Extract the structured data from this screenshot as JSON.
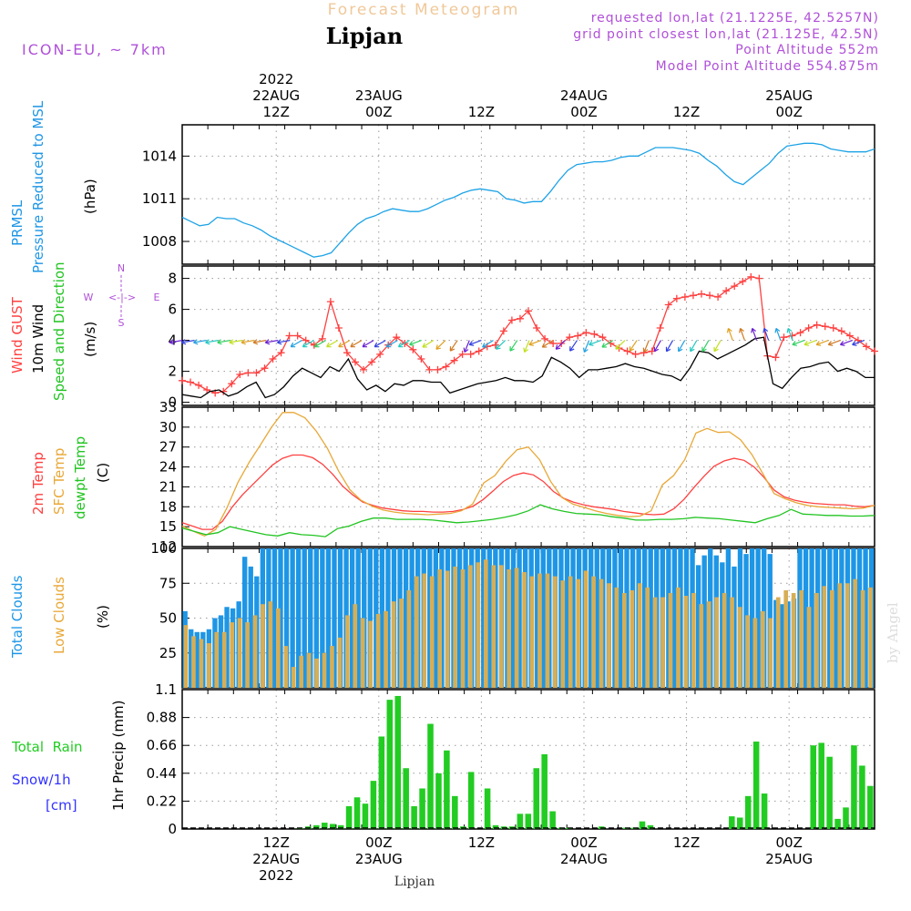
{
  "header": {
    "title": "Forecast Meteogram",
    "location": "Lipjan",
    "model": "ICON-EU, ~ 7km",
    "requested": "requested lon,lat (21.1225E, 42.5257N)",
    "gridpoint": "grid point closest lon,lat (21.125E, 42.5N)",
    "point_alt": "Point Altitude 552m",
    "model_alt": "Model Point Altitude 554.875m"
  },
  "time_axis": {
    "top_labels": [
      {
        "l1": "2022",
        "l2": "22AUG",
        "l3": "12Z",
        "h": 13
      },
      {
        "l1": "",
        "l2": "23AUG",
        "l3": "00Z",
        "h": 25
      },
      {
        "l1": "",
        "l2": "",
        "l3": "12Z",
        "h": 37
      },
      {
        "l1": "",
        "l2": "24AUG",
        "l3": "00Z",
        "h": 49
      },
      {
        "l1": "",
        "l2": "",
        "l3": "12Z",
        "h": 61
      },
      {
        "l1": "",
        "l2": "25AUG",
        "l3": "00Z",
        "h": 73
      }
    ],
    "bottom_labels": [
      {
        "l1": "12Z",
        "l2": "22AUG",
        "l3": "2022",
        "h": 13
      },
      {
        "l1": "00Z",
        "l2": "23AUG",
        "l3": "",
        "h": 25
      },
      {
        "l1": "12Z",
        "l2": "",
        "l3": "",
        "h": 37
      },
      {
        "l1": "00Z",
        "l2": "24AUG",
        "l3": "",
        "h": 49
      },
      {
        "l1": "12Z",
        "l2": "",
        "l3": "",
        "h": 61
      },
      {
        "l1": "00Z",
        "l2": "25AUG",
        "l3": "",
        "h": 73
      }
    ],
    "footer": "Lipjan",
    "watermark": "by Angel"
  },
  "colors": {
    "pressure": "#1ea3e6",
    "gust": "#ff4040",
    "wind10": "#000000",
    "t2m": "#ff4040",
    "sfc": "#e8a838",
    "dew": "#22c422",
    "total_clouds": "#1e96e6",
    "low_clouds": "#d7ae55",
    "rain": "#22cc22",
    "snow": "#3333ff",
    "purple": "#b050d8"
  },
  "chart_data": [
    {
      "type": "line",
      "title": "",
      "ylabel_lines": [
        "PRMSL",
        "Pressure Reduced to MSL"
      ],
      "unit": "(hPa)",
      "yticks": [
        1008,
        1011,
        1014
      ],
      "ylim": [
        1006.4,
        1016.2
      ],
      "series": [
        {
          "name": "PRMSL",
          "values": [
            1009.7,
            1009.4,
            1009.1,
            1009.2,
            1009.7,
            1009.6,
            1009.6,
            1009.3,
            1009.1,
            1008.8,
            1008.4,
            1008.1,
            1007.8,
            1007.5,
            1007.2,
            1006.9,
            1007.0,
            1007.2,
            1007.9,
            1008.6,
            1009.2,
            1009.6,
            1009.8,
            1010.1,
            1010.3,
            1010.2,
            1010.1,
            1010.1,
            1010.3,
            1010.6,
            1010.9,
            1011.1,
            1011.4,
            1011.6,
            1011.7,
            1011.6,
            1011.5,
            1011.0,
            1010.9,
            1010.7,
            1010.8,
            1010.8,
            1011.5,
            1012.3,
            1013.0,
            1013.4,
            1013.5,
            1013.6,
            1013.6,
            1013.7,
            1013.9,
            1014.0,
            1014.0,
            1014.3,
            1014.6,
            1014.6,
            1014.6,
            1014.5,
            1014.4,
            1014.2,
            1013.7,
            1013.3,
            1012.7,
            1012.2,
            1012.0,
            1012.5,
            1013.0,
            1013.5,
            1014.2,
            1014.7,
            1014.8,
            1014.9,
            1014.9,
            1014.8,
            1014.5,
            1014.4,
            1014.3,
            1014.3,
            1014.3,
            1014.5
          ]
        }
      ]
    },
    {
      "type": "line",
      "ylabel_lines": [
        "Wind GUST",
        "10m Wind",
        "Speed and Direction"
      ],
      "unit": "(m/s)",
      "compass": {
        "n": "N",
        "s": "S",
        "w": "W",
        "e": "E",
        "arrow": "<-|->"
      },
      "yticks": [
        0,
        2,
        4,
        6,
        8
      ],
      "ylim": [
        -0.2,
        8.8
      ],
      "series": [
        {
          "name": "Wind GUST",
          "values": [
            1.4,
            1.3,
            1.1,
            0.8,
            0.6,
            0.7,
            1.2,
            1.8,
            1.9,
            1.9,
            2.2,
            2.8,
            3.2,
            4.3,
            4.3,
            4.0,
            3.7,
            4.1,
            6.5,
            4.8,
            3.2,
            2.6,
            2.1,
            2.6,
            3.1,
            3.7,
            4.2,
            3.8,
            3.4,
            2.8,
            2.1,
            2.1,
            2.3,
            2.7,
            3.1,
            3.1,
            3.3,
            3.6,
            3.7,
            4.6,
            5.3,
            5.4,
            5.9,
            4.8,
            4.1,
            3.8,
            3.8,
            4.2,
            4.3,
            4.5,
            4.4,
            4.2,
            3.8,
            3.5,
            3.3,
            3.1,
            3.2,
            3.3,
            4.8,
            6.3,
            6.7,
            6.8,
            6.9,
            7.0,
            6.9,
            6.8,
            7.2,
            7.5,
            7.8,
            8.1,
            8.0,
            3.0,
            2.9,
            4.2,
            4.3,
            4.5,
            4.8,
            5.0,
            4.9,
            4.8,
            4.6,
            4.3,
            4.0,
            3.6,
            3.3
          ]
        },
        {
          "name": "10m Wind",
          "values": [
            0.5,
            0.4,
            0.3,
            0.7,
            0.8,
            0.4,
            0.6,
            1.0,
            1.3,
            0.3,
            0.5,
            1.0,
            1.7,
            2.2,
            1.9,
            1.6,
            2.3,
            2.0,
            2.8,
            1.5,
            0.8,
            1.1,
            0.7,
            1.2,
            1.1,
            1.4,
            1.4,
            1.3,
            1.3,
            0.6,
            0.8,
            1.0,
            1.2,
            1.3,
            1.4,
            1.6,
            1.4,
            1.4,
            1.3,
            1.7,
            2.9,
            2.6,
            2.2,
            1.6,
            2.1,
            2.1,
            2.2,
            2.3,
            2.5,
            2.3,
            2.2,
            2.0,
            1.8,
            1.7,
            1.4,
            2.2,
            3.3,
            3.2,
            2.8,
            3.1,
            3.4,
            3.7,
            4.1,
            4.2,
            1.2,
            0.9,
            1.6,
            2.2,
            2.3,
            2.5,
            2.6,
            2.0,
            2.2,
            2.0,
            1.6,
            1.6
          ]
        }
      ]
    },
    {
      "type": "line",
      "ylabel_lines": [
        "2m Temp",
        "SFC Temp",
        "dewpt Temp"
      ],
      "unit": "(C)",
      "yticks": [
        12,
        15,
        18,
        21,
        24,
        27,
        30,
        33
      ],
      "ylim": [
        12,
        33
      ],
      "series": [
        {
          "name": "2m Temp",
          "values": [
            15.6,
            15.1,
            14.6,
            14.6,
            15.8,
            18.0,
            19.8,
            21.3,
            22.8,
            24.3,
            25.3,
            25.8,
            25.8,
            25.4,
            24.4,
            22.9,
            21.1,
            19.8,
            18.7,
            18.2,
            17.8,
            17.6,
            17.4,
            17.3,
            17.3,
            17.2,
            17.2,
            17.3,
            17.6,
            18.1,
            19.1,
            20.4,
            21.8,
            22.7,
            23.1,
            22.8,
            21.8,
            20.3,
            19.3,
            18.7,
            18.3,
            18.0,
            17.8,
            17.6,
            17.3,
            17.1,
            16.9,
            16.8,
            16.9,
            17.7,
            19.1,
            20.9,
            22.6,
            24.1,
            24.9,
            25.3,
            25.0,
            24.0,
            22.4,
            20.5,
            19.5,
            19.0,
            18.7,
            18.5,
            18.4,
            18.3,
            18.3,
            18.1,
            18.0,
            18.2
          ]
        },
        {
          "name": "SFC Temp",
          "values": [
            15.1,
            14.3,
            13.6,
            14.6,
            17.8,
            21.7,
            24.7,
            27.3,
            30.0,
            32.2,
            32.2,
            31.4,
            29.4,
            26.8,
            23.4,
            20.6,
            19.0,
            18.1,
            17.5,
            17.2,
            17.0,
            16.9,
            16.8,
            16.9,
            17.0,
            17.4,
            18.4,
            21.6,
            22.7,
            24.9,
            26.6,
            27.0,
            25.1,
            21.8,
            19.4,
            18.4,
            17.9,
            17.4,
            17.0,
            16.7,
            16.5,
            16.6,
            17.4,
            21.3,
            22.7,
            25.1,
            29.1,
            29.8,
            29.2,
            29.3,
            28.1,
            25.9,
            23.0,
            20.0,
            19.2,
            18.6,
            18.2,
            18.0,
            17.9,
            17.8,
            17.7,
            17.8,
            18.2
          ]
        },
        {
          "name": "dewpt Temp",
          "values": [
            14.8,
            14.3,
            13.8,
            14.1,
            15.0,
            14.6,
            14.2,
            13.8,
            13.6,
            14.1,
            13.8,
            13.7,
            13.5,
            14.7,
            15.1,
            15.8,
            16.3,
            16.3,
            16.1,
            16.1,
            16.1,
            16.0,
            15.8,
            15.6,
            15.7,
            15.9,
            16.1,
            16.4,
            16.8,
            17.4,
            18.3,
            17.7,
            17.3,
            17.0,
            16.9,
            16.8,
            16.5,
            16.3,
            16.0,
            16.0,
            16.1,
            16.1,
            16.2,
            16.4,
            16.3,
            16.2,
            16.0,
            15.8,
            15.6,
            16.2,
            16.7,
            17.6,
            16.9,
            16.8,
            16.7,
            16.7,
            16.6,
            16.6,
            16.7
          ]
        }
      ]
    },
    {
      "type": "bar",
      "ylabel_lines": [
        "Total Clouds",
        "Low Clouds"
      ],
      "unit": "(%)",
      "yticks": [
        25,
        50,
        75,
        100
      ],
      "ylim": [
        0,
        100
      ],
      "series": [
        {
          "name": "Total Clouds",
          "values": [
            55,
            42,
            40,
            40,
            42,
            50,
            52,
            58,
            57,
            62,
            94,
            87,
            80,
            100,
            100,
            100,
            100,
            100,
            100,
            100,
            100,
            100,
            100,
            100,
            100,
            100,
            100,
            100,
            100,
            100,
            100,
            100,
            100,
            100,
            100,
            100,
            100,
            100,
            100,
            100,
            100,
            100,
            100,
            100,
            100,
            100,
            100,
            100,
            100,
            100,
            100,
            100,
            100,
            100,
            100,
            100,
            100,
            100,
            100,
            100,
            100,
            100,
            100,
            100,
            100,
            100,
            100,
            100,
            100,
            100,
            100,
            100,
            100,
            100,
            100,
            100,
            100,
            100,
            100,
            100,
            100,
            100,
            100,
            100,
            100,
            100,
            88,
            95,
            100,
            95,
            90,
            100,
            87,
            100,
            96,
            100,
            100,
            100,
            96,
            63,
            60,
            62,
            64,
            100,
            100,
            100,
            100,
            100,
            100,
            100,
            100,
            100,
            100,
            100,
            100,
            100
          ]
        },
        {
          "name": "Low Clouds",
          "values": [
            45,
            37,
            35,
            32,
            40,
            40,
            47,
            50,
            47,
            52,
            60,
            62,
            57,
            30,
            15,
            23,
            25,
            21,
            25,
            30,
            36,
            52,
            60,
            50,
            48,
            53,
            55,
            62,
            64,
            70,
            80,
            82,
            80,
            85,
            84,
            87,
            85,
            88,
            90,
            92,
            88,
            88,
            85,
            86,
            83,
            80,
            82,
            82,
            80,
            77,
            80,
            78,
            84,
            80,
            78,
            75,
            72,
            68,
            70,
            75,
            72,
            65,
            65,
            68,
            72,
            66,
            68,
            60,
            62,
            65,
            68,
            65,
            58,
            52,
            50,
            55,
            50,
            65,
            70,
            68,
            70,
            58,
            68,
            73,
            70,
            75,
            75,
            78,
            70,
            72
          ]
        }
      ]
    },
    {
      "type": "bar",
      "ylabel_lines": [
        "Total  Rain",
        "Snow/1h",
        "[cm]"
      ],
      "unit": "1hr Precip (mm)",
      "yticks": [
        0,
        0.22,
        0.44,
        0.66,
        0.88,
        1.1
      ],
      "ylim": [
        0,
        1.1
      ],
      "series": [
        {
          "name": "Total Rain",
          "values": [
            0,
            0,
            0,
            0,
            0,
            0,
            0,
            0,
            0,
            0,
            0,
            0,
            0,
            0,
            0.005,
            0.02,
            0.03,
            0.05,
            0.04,
            0.03,
            0.18,
            0.25,
            0.2,
            0.38,
            0.73,
            1.02,
            1.05,
            0.48,
            0.18,
            0.32,
            0.83,
            0.44,
            0.62,
            0.26,
            0.02,
            0.45,
            0,
            0.32,
            0.03,
            0.02,
            0.02,
            0.12,
            0.12,
            0.48,
            0.59,
            0.14,
            0.01,
            0.01,
            0,
            0,
            0,
            0.02,
            0,
            0,
            0.01,
            0.01,
            0.06,
            0.03,
            0,
            0,
            0,
            0,
            0,
            0,
            0,
            0,
            0,
            0.1,
            0.09,
            0.26,
            0.69,
            0.28,
            0,
            0,
            0,
            0,
            0,
            0.66,
            0.68,
            0.57,
            0.08,
            0.17,
            0.66,
            0.5,
            0.34
          ]
        }
      ]
    }
  ]
}
